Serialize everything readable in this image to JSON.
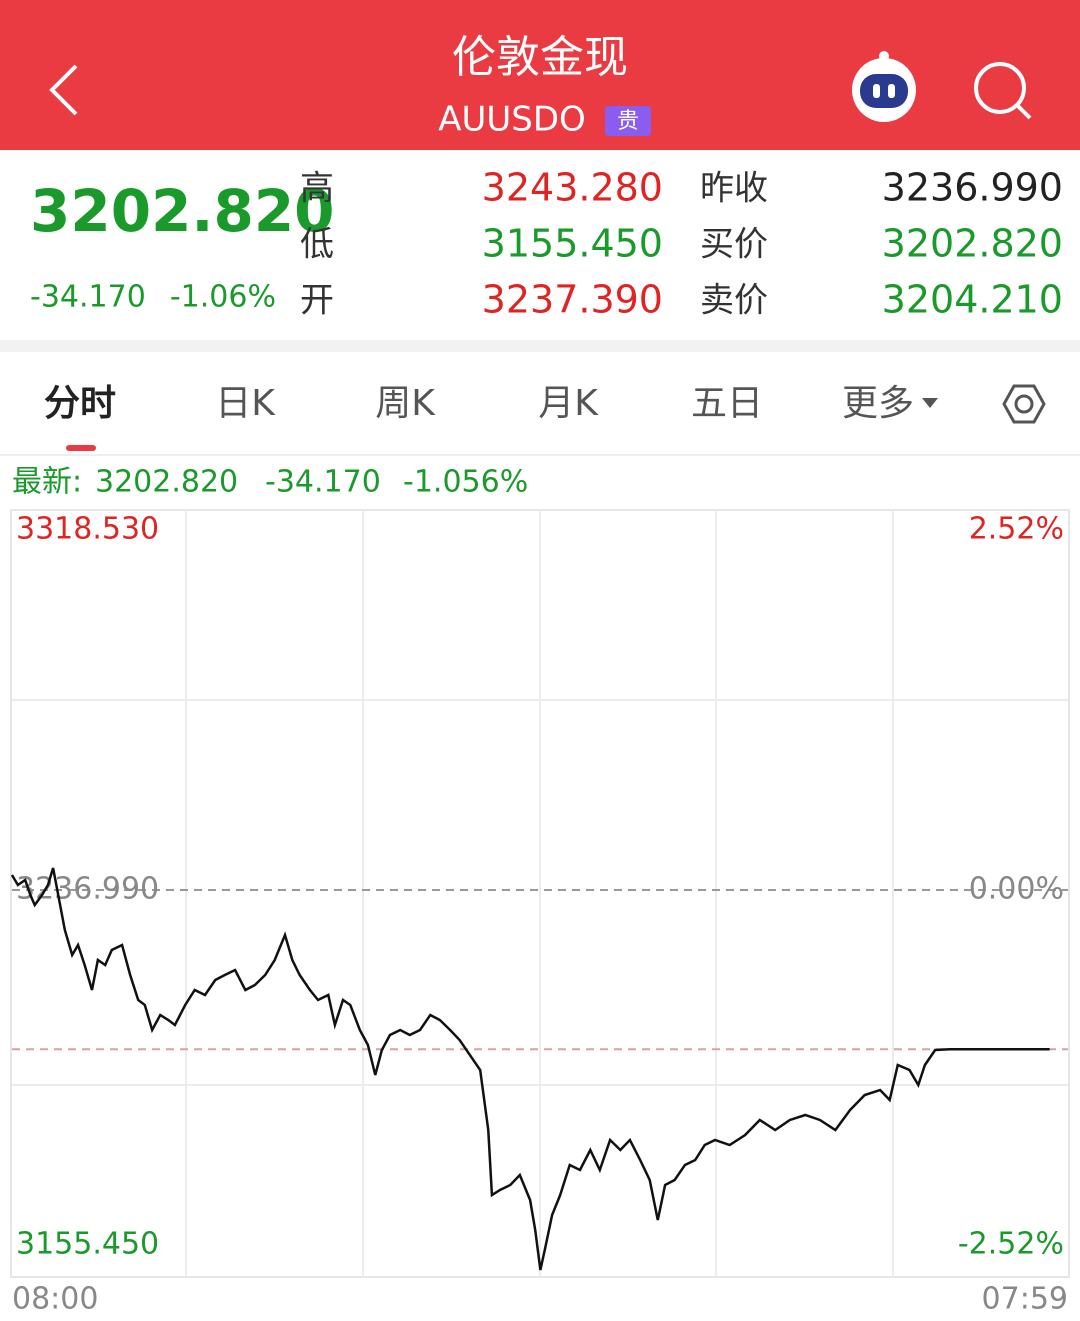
{
  "header": {
    "title": "伦敦金现",
    "code": "AUUSDO",
    "badge": "贵"
  },
  "quote": {
    "price": "3202.820",
    "change": "-34.170",
    "change_pct": "-1.06%",
    "price_color": "#1a9a2a",
    "stats_left": [
      {
        "label": "高",
        "value": "3243.280",
        "color": "#e02424"
      },
      {
        "label": "低",
        "value": "3155.450",
        "color": "#1a9a2a"
      },
      {
        "label": "开",
        "value": "3237.390",
        "color": "#e02424"
      }
    ],
    "stats_right": [
      {
        "label": "昨收",
        "value": "3236.990",
        "color": "#222222"
      },
      {
        "label": "买价",
        "value": "3202.820",
        "color": "#1a9a2a"
      },
      {
        "label": "卖价",
        "value": "3204.210",
        "color": "#1a9a2a"
      }
    ]
  },
  "tabs": [
    "分时",
    "日K",
    "周K",
    "月K",
    "五日",
    "更多"
  ],
  "latest": {
    "label": "最新:",
    "price": "3202.820",
    "change": "-34.170",
    "change_pct": "-1.056%"
  },
  "chart_data": {
    "type": "line",
    "x": [
      0,
      8,
      18,
      25,
      31,
      41,
      49,
      56,
      63,
      72,
      82,
      90,
      99,
      109,
      117,
      127,
      136,
      150,
      161,
      172,
      181,
      191,
      202,
      213,
      222,
      236,
      249,
      263,
      277,
      290,
      304,
      318,
      331,
      345,
      358,
      372,
      382,
      392,
      406,
      417,
      431,
      440,
      451,
      461,
      474,
      485,
      495,
      504,
      515,
      529,
      542,
      556,
      570,
      583,
      597,
      610,
      624,
      638,
      649,
      654,
      665,
      679,
      692,
      706,
      713,
      720,
      726,
      736,
      747,
      760,
      774,
      788,
      801,
      815,
      829,
      842,
      856,
      869,
      880,
      890,
      903,
      917,
      931,
      944,
      958,
      978,
      999,
      1019,
      1040,
      1060,
      1081,
      1101,
      1122,
      1142,
      1162,
      1183,
      1196,
      1207,
      1223,
      1235,
      1244,
      1258,
      1278,
      1414
    ],
    "series": [
      {
        "color": "#111111",
        "values": [
          3240.21,
          3238.06,
          3239.14,
          3235.92,
          3233.77,
          3235.92,
          3238.06,
          3241.71,
          3235.92,
          3228.41,
          3223.04,
          3225.19,
          3220.9,
          3215.53,
          3221.97,
          3220.9,
          3224.12,
          3225.19,
          3218.75,
          3213.39,
          3212.31,
          3206.95,
          3210.17,
          3209.09,
          3208.02,
          3212.31,
          3215.53,
          3214.46,
          3217.68,
          3218.75,
          3219.82,
          3215.53,
          3216.6,
          3218.75,
          3221.97,
          3227.33,
          3221.97,
          3218.75,
          3215.53,
          3213.39,
          3214.46,
          3208.02,
          3213.39,
          3212.31,
          3206.95,
          3203.73,
          3197.29,
          3202.66,
          3205.88,
          3206.95,
          3205.88,
          3206.95,
          3210.17,
          3209.09,
          3206.95,
          3204.8,
          3201.58,
          3198.36,
          3185.49,
          3171.54,
          3172.62,
          3173.69,
          3175.83,
          3170.47,
          3164.03,
          3155.45,
          3159.74,
          3167.25,
          3171.54,
          3177.98,
          3176.91,
          3181.2,
          3176.91,
          3183.35,
          3181.2,
          3183.35,
          3179.05,
          3174.76,
          3166.18,
          3173.69,
          3174.76,
          3177.98,
          3179.05,
          3182.27,
          3183.35,
          3182.27,
          3184.42,
          3187.64,
          3185.49,
          3187.64,
          3188.71,
          3187.64,
          3185.49,
          3189.78,
          3193.0,
          3194.07,
          3191.93,
          3199.44,
          3198.36,
          3195.15,
          3199.44,
          3202.66,
          3202.82,
          3202.82
        ]
      }
    ],
    "xlim": [
      0,
      1439
    ],
    "xticks": [
      {
        "value": 0,
        "label": "08:00"
      },
      {
        "value": 1439,
        "label": "07:59"
      }
    ],
    "ylim": [
      3155.45,
      3318.53
    ],
    "yticks": [
      {
        "value": 3318.53,
        "label": "3318.530"
      },
      {
        "value": 3236.99,
        "label": "3236.990"
      },
      {
        "value": 3155.45,
        "label": "3155.450"
      }
    ],
    "y2lim": [
      -2.52,
      2.52
    ],
    "y2ticks": [
      {
        "value": 2.52,
        "label": "2.52%"
      },
      {
        "value": 0,
        "label": "0.00%"
      },
      {
        "value": -2.52,
        "label": "-2.52%"
      }
    ],
    "up_color": "#e02424",
    "down_color": "#1a9a2a",
    "flat_color": "#888888",
    "grid": true
  }
}
